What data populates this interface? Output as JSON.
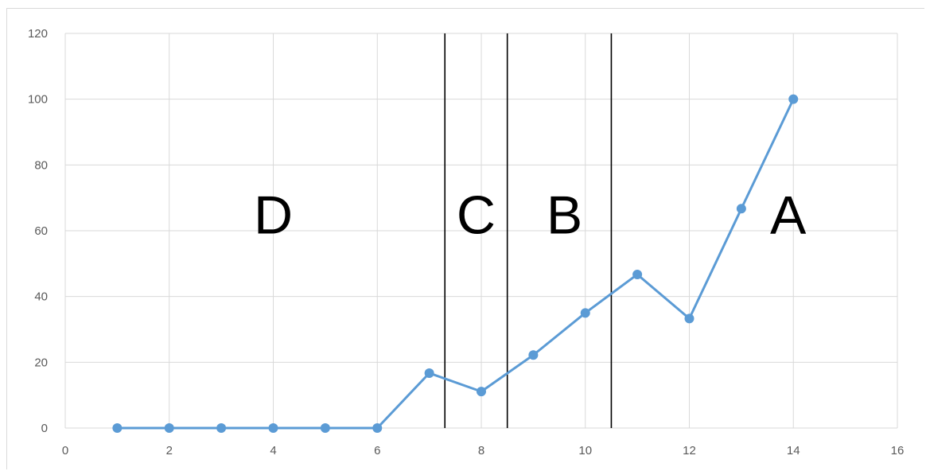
{
  "chart_data": {
    "type": "scatter",
    "title": "",
    "xlabel": "",
    "ylabel": "",
    "xlim": [
      0,
      16
    ],
    "ylim": [
      0,
      120
    ],
    "x_ticks": [
      0,
      2,
      4,
      6,
      8,
      10,
      12,
      14,
      16
    ],
    "y_ticks": [
      0,
      20,
      40,
      60,
      80,
      100,
      120
    ],
    "grid": true,
    "legend": "none",
    "series": [
      {
        "color": "#5b9bd5",
        "marker": "circle",
        "line": "straight",
        "x": [
          1,
          2,
          3,
          4,
          5,
          6,
          7,
          8,
          9,
          10,
          11,
          12,
          13,
          14
        ],
        "y": [
          0,
          0,
          0,
          0,
          0,
          0,
          16.7,
          11.1,
          22.2,
          35,
          46.7,
          33.3,
          66.7,
          100
        ]
      }
    ],
    "vertical_lines": [
      {
        "x": 7.3,
        "color": "#000000"
      },
      {
        "x": 8.5,
        "color": "#000000"
      },
      {
        "x": 10.5,
        "color": "#000000"
      }
    ],
    "annotations": [
      {
        "text": "D",
        "x": 4,
        "y": 65
      },
      {
        "text": "C",
        "x": 7.9,
        "y": 65
      },
      {
        "text": "B",
        "x": 9.6,
        "y": 65
      },
      {
        "text": "A",
        "x": 13.9,
        "y": 65
      }
    ]
  }
}
